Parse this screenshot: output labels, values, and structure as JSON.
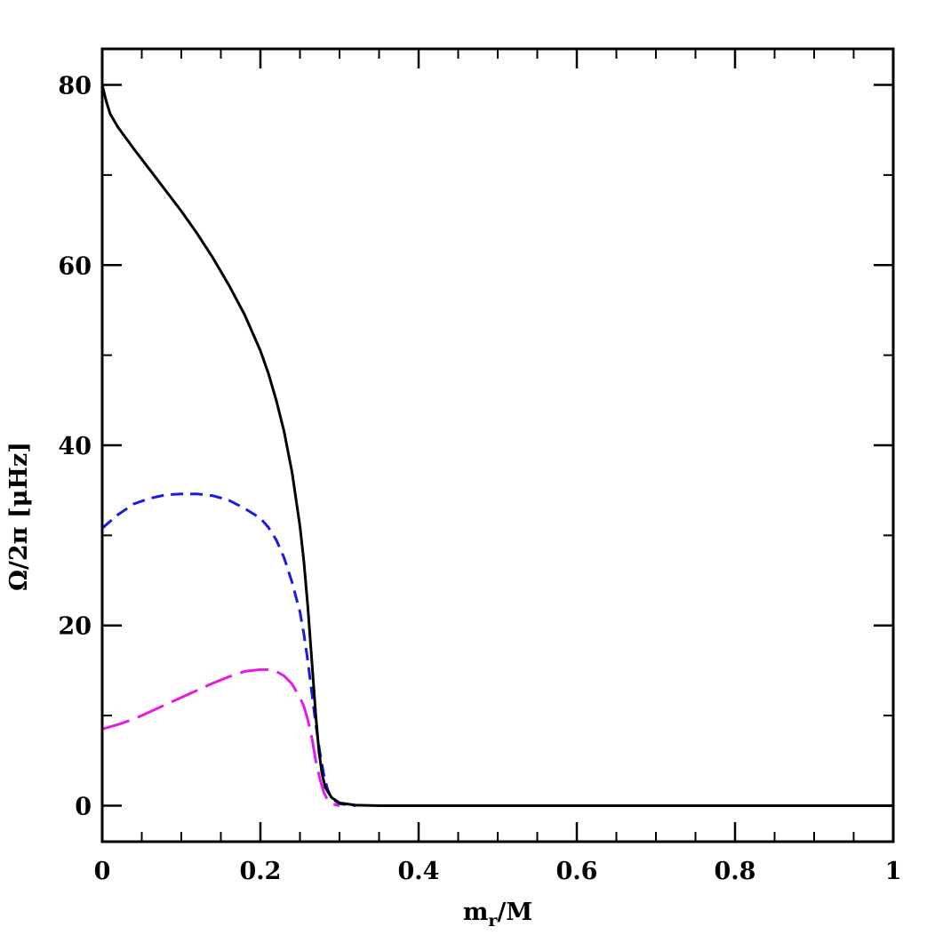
{
  "chart_data": {
    "type": "line",
    "xlabel": "m",
    "xlabel_sub": "r",
    "xlabel_rest": "/M",
    "ylabel": "Ω/2π  [μHz]",
    "xlim": [
      0,
      1
    ],
    "ylim": [
      -4,
      84
    ],
    "x_major_ticks": [
      0,
      0.2,
      0.4,
      0.6,
      0.8,
      1
    ],
    "x_tick_labels": [
      "0",
      "0.2",
      "0.4",
      "0.6",
      "0.8",
      "1"
    ],
    "x_minor_step": 0.05,
    "y_major_ticks": [
      0,
      20,
      40,
      60,
      80
    ],
    "y_tick_labels": [
      "0",
      "20",
      "40",
      "60",
      "80"
    ],
    "y_minor_step": 10,
    "grid": false,
    "series": [
      {
        "color": "#000000",
        "dash": "solid",
        "points": [
          [
            0,
            80
          ],
          [
            0.005,
            78.2
          ],
          [
            0.01,
            76.8
          ],
          [
            0.02,
            75.3
          ],
          [
            0.04,
            72.9
          ],
          [
            0.06,
            70.6
          ],
          [
            0.08,
            68.3
          ],
          [
            0.1,
            66
          ],
          [
            0.12,
            63.5
          ],
          [
            0.14,
            60.8
          ],
          [
            0.16,
            57.8
          ],
          [
            0.18,
            54.5
          ],
          [
            0.2,
            50.5
          ],
          [
            0.21,
            48
          ],
          [
            0.22,
            45
          ],
          [
            0.23,
            41.5
          ],
          [
            0.24,
            37
          ],
          [
            0.25,
            31
          ],
          [
            0.255,
            27
          ],
          [
            0.26,
            22
          ],
          [
            0.265,
            16
          ],
          [
            0.27,
            10
          ],
          [
            0.274,
            6
          ],
          [
            0.278,
            3.5
          ],
          [
            0.282,
            2
          ],
          [
            0.29,
            0.9
          ],
          [
            0.3,
            0.3
          ],
          [
            0.32,
            0.05
          ],
          [
            0.35,
            0
          ],
          [
            0.5,
            0
          ],
          [
            0.7,
            0
          ],
          [
            1,
            0
          ]
        ]
      },
      {
        "color": "#1a1ae6",
        "dash": "short",
        "points": [
          [
            0,
            30.8
          ],
          [
            0.02,
            32.3
          ],
          [
            0.04,
            33.5
          ],
          [
            0.06,
            34.1
          ],
          [
            0.08,
            34.5
          ],
          [
            0.1,
            34.6
          ],
          [
            0.12,
            34.6
          ],
          [
            0.14,
            34.4
          ],
          [
            0.16,
            33.9
          ],
          [
            0.18,
            33
          ],
          [
            0.2,
            31.9
          ],
          [
            0.21,
            30.9
          ],
          [
            0.22,
            29.5
          ],
          [
            0.23,
            27.5
          ],
          [
            0.24,
            24.8
          ],
          [
            0.25,
            21.5
          ],
          [
            0.255,
            19
          ],
          [
            0.26,
            16
          ],
          [
            0.265,
            12.5
          ],
          [
            0.27,
            9
          ],
          [
            0.275,
            6
          ],
          [
            0.28,
            3.5
          ],
          [
            0.285,
            1.8
          ],
          [
            0.29,
            0.8
          ],
          [
            0.3,
            0.2
          ],
          [
            0.32,
            0
          ]
        ]
      },
      {
        "color": "#e61ae6",
        "dash": "long",
        "points": [
          [
            0,
            8.5
          ],
          [
            0.02,
            9
          ],
          [
            0.04,
            9.6
          ],
          [
            0.06,
            10.4
          ],
          [
            0.08,
            11.2
          ],
          [
            0.1,
            12
          ],
          [
            0.12,
            12.8
          ],
          [
            0.14,
            13.6
          ],
          [
            0.16,
            14.3
          ],
          [
            0.18,
            14.9
          ],
          [
            0.2,
            15.1
          ],
          [
            0.21,
            15.1
          ],
          [
            0.22,
            14.9
          ],
          [
            0.23,
            14.4
          ],
          [
            0.24,
            13.5
          ],
          [
            0.25,
            12
          ],
          [
            0.255,
            11
          ],
          [
            0.26,
            9.5
          ],
          [
            0.265,
            7.5
          ],
          [
            0.27,
            5
          ],
          [
            0.275,
            3
          ],
          [
            0.28,
            1.5
          ],
          [
            0.285,
            0.6
          ],
          [
            0.29,
            0.2
          ],
          [
            0.3,
            0
          ]
        ]
      }
    ]
  }
}
